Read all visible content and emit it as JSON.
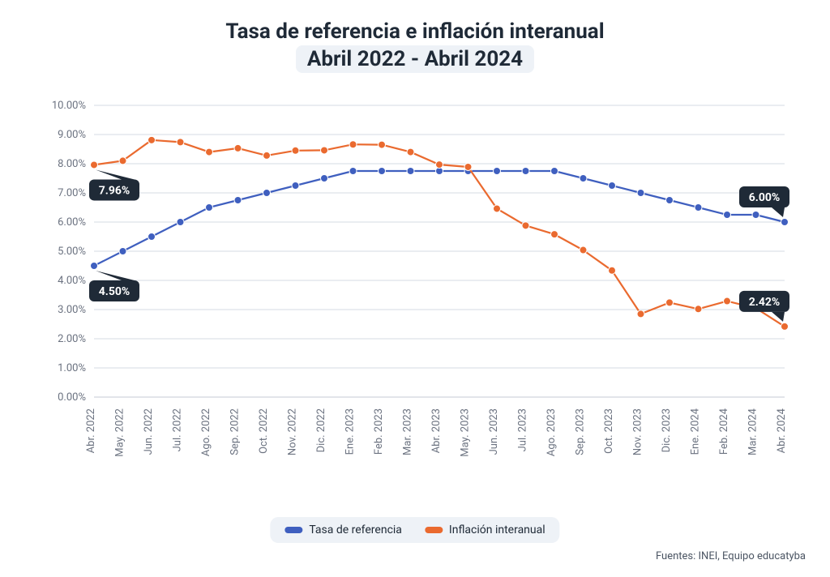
{
  "title": {
    "line1": "Tasa de referencia e inflación interanual",
    "line2": "Abril 2022 - Abril 2024",
    "fontsize": 26,
    "color": "#1f2a37",
    "highlight_bg": "#eef2f7"
  },
  "chart": {
    "type": "line",
    "background_color": "#ffffff",
    "grid_color": "#d6dbe3",
    "axis_label_color": "#6b7280",
    "axis_fontsize": 13,
    "ylim": [
      0,
      10
    ],
    "ytick_step": 1,
    "ytick_format_suffix": "%",
    "ytick_decimals": 2,
    "categories": [
      "Abr. 2022",
      "May. 2022",
      "Jun. 2022",
      "Jul. 2022",
      "Ago. 2022",
      "Sep. 2022",
      "Oct. 2022",
      "Nov. 2022",
      "Dic. 2022",
      "Ene. 2023",
      "Feb. 2023",
      "Mar. 2023",
      "Abr. 2023",
      "May. 2023",
      "Jun. 2023",
      "Jul. 2023",
      "Ago. 2023",
      "Sep. 2023",
      "Oct. 2023",
      "Nov. 2023",
      "Dic. 2023",
      "Ene. 2024",
      "Feb. 2024",
      "Mar. 2024",
      "Abr. 2024"
    ],
    "series": [
      {
        "name": "Tasa de referencia",
        "color": "#3f5fbf",
        "line_width": 2.2,
        "marker": "circle",
        "marker_size": 4.5,
        "values": [
          4.5,
          5.0,
          5.5,
          6.0,
          6.5,
          6.75,
          7.0,
          7.25,
          7.5,
          7.75,
          7.75,
          7.75,
          7.75,
          7.75,
          7.75,
          7.75,
          7.75,
          7.5,
          7.25,
          7.0,
          6.75,
          6.5,
          6.25,
          6.25,
          6.0
        ]
      },
      {
        "name": "Inflación interanual",
        "color": "#ea6a2f",
        "line_width": 2.2,
        "marker": "circle",
        "marker_size": 4.5,
        "values": [
          7.96,
          8.1,
          8.81,
          8.74,
          8.4,
          8.53,
          8.28,
          8.45,
          8.46,
          8.66,
          8.65,
          8.4,
          7.97,
          7.89,
          6.46,
          5.88,
          5.58,
          5.04,
          4.34,
          2.85,
          3.24,
          3.02,
          3.29,
          3.05,
          2.42
        ]
      }
    ],
    "callouts": [
      {
        "series": 1,
        "index": 0,
        "text": "7.96%",
        "position": "below"
      },
      {
        "series": 0,
        "index": 0,
        "text": "4.50%",
        "position": "below"
      },
      {
        "series": 0,
        "index": 24,
        "text": "6.00%",
        "position": "above"
      },
      {
        "series": 1,
        "index": 24,
        "text": "2.42%",
        "position": "above"
      }
    ],
    "callout_style": {
      "bg": "#1f2a37",
      "text_color": "#ffffff",
      "fontsize": 14,
      "radius": 6
    },
    "legend": {
      "position": "bottom-center",
      "bg": "#eef2f7",
      "items": [
        {
          "label": "Tasa de referencia",
          "color": "#3f5fbf"
        },
        {
          "label": "Inflación interanual",
          "color": "#ea6a2f"
        }
      ]
    }
  },
  "sources": "Fuentes: INEI, Equipo educatyba"
}
